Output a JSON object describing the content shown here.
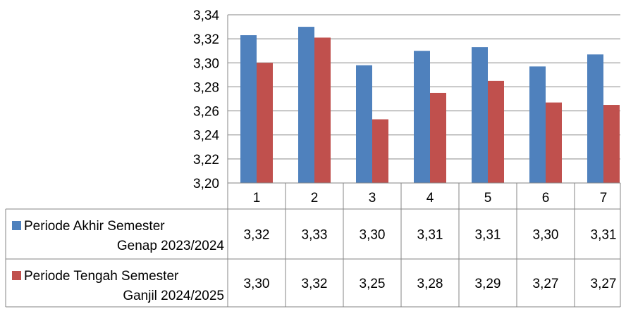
{
  "chart_data": {
    "type": "bar",
    "categories": [
      "1",
      "2",
      "3",
      "4",
      "5",
      "6",
      "7"
    ],
    "ylim": [
      3.2,
      3.34
    ],
    "yticks": [
      "3,20",
      "3,22",
      "3,24",
      "3,26",
      "3,28",
      "3,30",
      "3,32",
      "3,34"
    ],
    "grid": true,
    "legend": "data-table",
    "series": [
      {
        "name_lines": [
          "Periode Akhir Semester",
          "Genap 2023/2024"
        ],
        "color": "#4F81BD",
        "values": [
          3.323,
          3.33,
          3.298,
          3.31,
          3.313,
          3.297,
          3.307
        ],
        "table_values": [
          "3,32",
          "3,33",
          "3,30",
          "3,31",
          "3,31",
          "3,30",
          "3,31"
        ]
      },
      {
        "name_lines": [
          "Periode Tengah Semester",
          "Ganjil 2024/2025"
        ],
        "color": "#C0504D",
        "values": [
          3.3,
          3.321,
          3.253,
          3.275,
          3.285,
          3.267,
          3.265
        ],
        "table_values": [
          "3,30",
          "3,32",
          "3,25",
          "3,28",
          "3,29",
          "3,27",
          "3,27"
        ]
      }
    ]
  }
}
